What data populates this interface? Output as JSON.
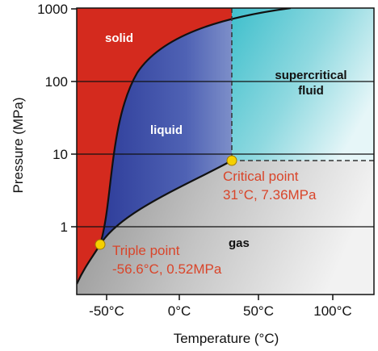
{
  "y_axis": {
    "title": "Pressure (MPa)",
    "ticks": [
      "1000",
      "100",
      "10",
      "1"
    ]
  },
  "x_axis": {
    "title": "Temperature (°C)",
    "ticks": [
      "-50°C",
      "0°C",
      "50°C",
      "100°C"
    ]
  },
  "regions": {
    "solid": "solid",
    "liquid": "liquid",
    "supercritical_line1": "supercritical",
    "supercritical_line2": "fluid",
    "gas": "gas"
  },
  "critical_point": {
    "label": "Critical point",
    "value": "31°C, 7.36MPa",
    "temperature_c": 31,
    "pressure_mpa": 7.36
  },
  "triple_point": {
    "label": "Triple point",
    "value": "-56.6°C, 0.52MPa",
    "temperature_c": -56.6,
    "pressure_mpa": 0.52
  },
  "colors": {
    "solid": "#d42a1e",
    "liquid_dark": "#2e3d9a",
    "liquid_light": "#b8c8e4",
    "supercritical_dark": "#3fbfcc",
    "supercritical_light": "#e6f6f8",
    "gas_dark": "#8f8f8f",
    "gas_light": "#f2f2f2",
    "point_marker": "#f5d000",
    "callout_text": "#d9452a"
  }
}
